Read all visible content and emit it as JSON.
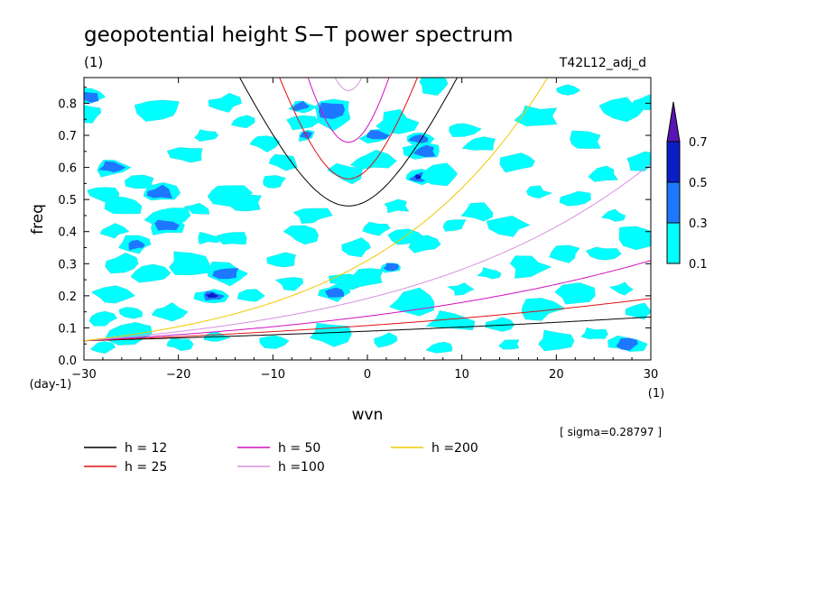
{
  "chart_data": {
    "type": "contour",
    "title": "geopotential height S−T power spectrum",
    "subtitle_left": "(1)",
    "subtitle_right": "T42L12_adj_d",
    "xlabel": "wvn",
    "ylabel": "freq",
    "x_unit": "(1)",
    "y_unit": "(day-1)",
    "xlim": [
      -30,
      30
    ],
    "ylim": [
      0,
      0.88
    ],
    "x_ticks": [
      "−30",
      "−20",
      "−10",
      "0",
      "10",
      "20",
      "30"
    ],
    "x_tick_values": [
      -30,
      -20,
      -10,
      0,
      10,
      20,
      30
    ],
    "y_ticks": [
      "0.0",
      "0.1",
      "0.2",
      "0.3",
      "0.4",
      "0.5",
      "0.6",
      "0.7",
      "0.8"
    ],
    "y_tick_values": [
      0,
      0.1,
      0.2,
      0.3,
      0.4,
      0.5,
      0.6,
      0.7,
      0.8
    ],
    "sigma_note": "[ sigma=0.28797 ]",
    "colorbar": {
      "levels": [
        "0.1",
        "0.3",
        "0.5",
        "0.7"
      ],
      "level_values": [
        0.1,
        0.3,
        0.5,
        0.7
      ],
      "colors": [
        "#00ffff",
        "#1e78ff",
        "#0a1ec8",
        "#5a14b4"
      ]
    },
    "series": [
      {
        "name": "h = 12",
        "color": "#000000",
        "h": 12
      },
      {
        "name": "h = 25",
        "color": "#e01010",
        "h": 25
      },
      {
        "name": "h = 50",
        "color": "#d010c0",
        "h": 50
      },
      {
        "name": "h =100",
        "color": "#d890e0",
        "h": 100
      },
      {
        "name": "h =200",
        "color": "#f0c800",
        "h": 200
      }
    ],
    "field_blobs": [
      {
        "x": -29.5,
        "y": 0.82,
        "level": 1
      },
      {
        "x": -29.5,
        "y": 0.77,
        "level": 0
      },
      {
        "x": -27,
        "y": 0.6,
        "level": 1
      },
      {
        "x": -28,
        "y": 0.52,
        "level": 0
      },
      {
        "x": -26,
        "y": 0.48,
        "level": 0
      },
      {
        "x": -24,
        "y": 0.55,
        "level": 0
      },
      {
        "x": -22,
        "y": 0.52,
        "level": 1
      },
      {
        "x": -21,
        "y": 0.45,
        "level": 0
      },
      {
        "x": -21.5,
        "y": 0.42,
        "level": 1
      },
      {
        "x": -18,
        "y": 0.47,
        "level": 0
      },
      {
        "x": -24.5,
        "y": 0.36,
        "level": 1
      },
      {
        "x": -26,
        "y": 0.3,
        "level": 0
      },
      {
        "x": -23,
        "y": 0.27,
        "level": 0
      },
      {
        "x": -19,
        "y": 0.3,
        "level": 0
      },
      {
        "x": -16.5,
        "y": 0.2,
        "level": 2
      },
      {
        "x": -15,
        "y": 0.27,
        "level": 1
      },
      {
        "x": -14.5,
        "y": 0.38,
        "level": 0
      },
      {
        "x": -13,
        "y": 0.49,
        "level": 0
      },
      {
        "x": -15,
        "y": 0.52,
        "level": 0
      },
      {
        "x": -27,
        "y": 0.2,
        "level": 0
      },
      {
        "x": -28,
        "y": 0.13,
        "level": 0
      },
      {
        "x": -25,
        "y": 0.15,
        "level": 0
      },
      {
        "x": -21,
        "y": 0.15,
        "level": 0
      },
      {
        "x": -12,
        "y": 0.2,
        "level": 0
      },
      {
        "x": -9,
        "y": 0.31,
        "level": 0
      },
      {
        "x": -8,
        "y": 0.24,
        "level": 0
      },
      {
        "x": -7,
        "y": 0.39,
        "level": 0
      },
      {
        "x": -6,
        "y": 0.45,
        "level": 0
      },
      {
        "x": -9,
        "y": 0.62,
        "level": 0
      },
      {
        "x": -11,
        "y": 0.68,
        "level": 0
      },
      {
        "x": -13,
        "y": 0.74,
        "level": 0
      },
      {
        "x": -7,
        "y": 0.74,
        "level": 0
      },
      {
        "x": -17,
        "y": 0.7,
        "level": 0
      },
      {
        "x": -19,
        "y": 0.64,
        "level": 0
      },
      {
        "x": -15,
        "y": 0.8,
        "level": 0
      },
      {
        "x": -22,
        "y": 0.78,
        "level": 0
      },
      {
        "x": -7,
        "y": 0.79,
        "level": 1
      },
      {
        "x": -4,
        "y": 0.75,
        "level": 0
      },
      {
        "x": -6.5,
        "y": 0.7,
        "level": 1
      },
      {
        "x": -4,
        "y": 0.78,
        "level": 1
      },
      {
        "x": 1,
        "y": 0.7,
        "level": 1
      },
      {
        "x": 3,
        "y": 0.74,
        "level": 0
      },
      {
        "x": 5.5,
        "y": 0.69,
        "level": 1
      },
      {
        "x": 6,
        "y": 0.65,
        "level": 1
      },
      {
        "x": 5.5,
        "y": 0.57,
        "level": 2
      },
      {
        "x": 8,
        "y": 0.58,
        "level": 0
      },
      {
        "x": 7,
        "y": 0.86,
        "level": 0
      },
      {
        "x": 10,
        "y": 0.72,
        "level": 0
      },
      {
        "x": 12,
        "y": 0.67,
        "level": 0
      },
      {
        "x": 3,
        "y": 0.48,
        "level": 0
      },
      {
        "x": 4,
        "y": 0.38,
        "level": 0
      },
      {
        "x": 1,
        "y": 0.41,
        "level": 0
      },
      {
        "x": 2.5,
        "y": 0.29,
        "level": 1
      },
      {
        "x": -3.5,
        "y": 0.21,
        "level": 1
      },
      {
        "x": -2,
        "y": 0.25,
        "level": 0
      },
      {
        "x": 0,
        "y": 0.26,
        "level": 0
      },
      {
        "x": 6,
        "y": 0.36,
        "level": 0
      },
      {
        "x": 9,
        "y": 0.42,
        "level": 0
      },
      {
        "x": 12,
        "y": 0.46,
        "level": 0
      },
      {
        "x": 15,
        "y": 0.42,
        "level": 0
      },
      {
        "x": 18,
        "y": 0.52,
        "level": 0
      },
      {
        "x": 22,
        "y": 0.5,
        "level": 0
      },
      {
        "x": 26,
        "y": 0.45,
        "level": 0
      },
      {
        "x": 28,
        "y": 0.38,
        "level": 0
      },
      {
        "x": 25,
        "y": 0.33,
        "level": 0
      },
      {
        "x": 21,
        "y": 0.33,
        "level": 0
      },
      {
        "x": 17,
        "y": 0.29,
        "level": 0
      },
      {
        "x": 13,
        "y": 0.27,
        "level": 0
      },
      {
        "x": 10,
        "y": 0.22,
        "level": 0
      },
      {
        "x": 5,
        "y": 0.18,
        "level": 0
      },
      {
        "x": 9,
        "y": 0.12,
        "level": 0
      },
      {
        "x": 14,
        "y": 0.11,
        "level": 0
      },
      {
        "x": 18,
        "y": 0.16,
        "level": 0
      },
      {
        "x": 22,
        "y": 0.2,
        "level": 0
      },
      {
        "x": 27,
        "y": 0.22,
        "level": 0
      },
      {
        "x": 29,
        "y": 0.15,
        "level": 0
      },
      {
        "x": 27.5,
        "y": 0.05,
        "level": 1
      },
      {
        "x": 24,
        "y": 0.08,
        "level": 0
      },
      {
        "x": 20,
        "y": 0.06,
        "level": 0
      },
      {
        "x": 15,
        "y": 0.05,
        "level": 0
      },
      {
        "x": 8,
        "y": 0.04,
        "level": 0
      },
      {
        "x": 2,
        "y": 0.06,
        "level": 0
      },
      {
        "x": -4,
        "y": 0.08,
        "level": 0
      },
      {
        "x": -10,
        "y": 0.06,
        "level": 0
      },
      {
        "x": -16,
        "y": 0.07,
        "level": 0
      },
      {
        "x": -20,
        "y": 0.05,
        "level": 0
      },
      {
        "x": -25,
        "y": 0.08,
        "level": 0
      },
      {
        "x": -28,
        "y": 0.04,
        "level": 0
      },
      {
        "x": 18,
        "y": 0.76,
        "level": 0
      },
      {
        "x": 23,
        "y": 0.68,
        "level": 0
      },
      {
        "x": 27,
        "y": 0.78,
        "level": 0
      },
      {
        "x": 29,
        "y": 0.62,
        "level": 0
      },
      {
        "x": 25,
        "y": 0.58,
        "level": 0
      },
      {
        "x": 16,
        "y": 0.62,
        "level": 0
      },
      {
        "x": 21,
        "y": 0.84,
        "level": 0
      },
      {
        "x": -2,
        "y": 0.58,
        "level": 0
      },
      {
        "x": -10,
        "y": 0.55,
        "level": 0
      },
      {
        "x": 0.5,
        "y": 0.62,
        "level": 0
      },
      {
        "x": -17,
        "y": 0.38,
        "level": 0
      },
      {
        "x": -27,
        "y": 0.4,
        "level": 0
      },
      {
        "x": 29.5,
        "y": 0.8,
        "level": 0
      },
      {
        "x": -1,
        "y": 0.35,
        "level": 0
      }
    ]
  }
}
